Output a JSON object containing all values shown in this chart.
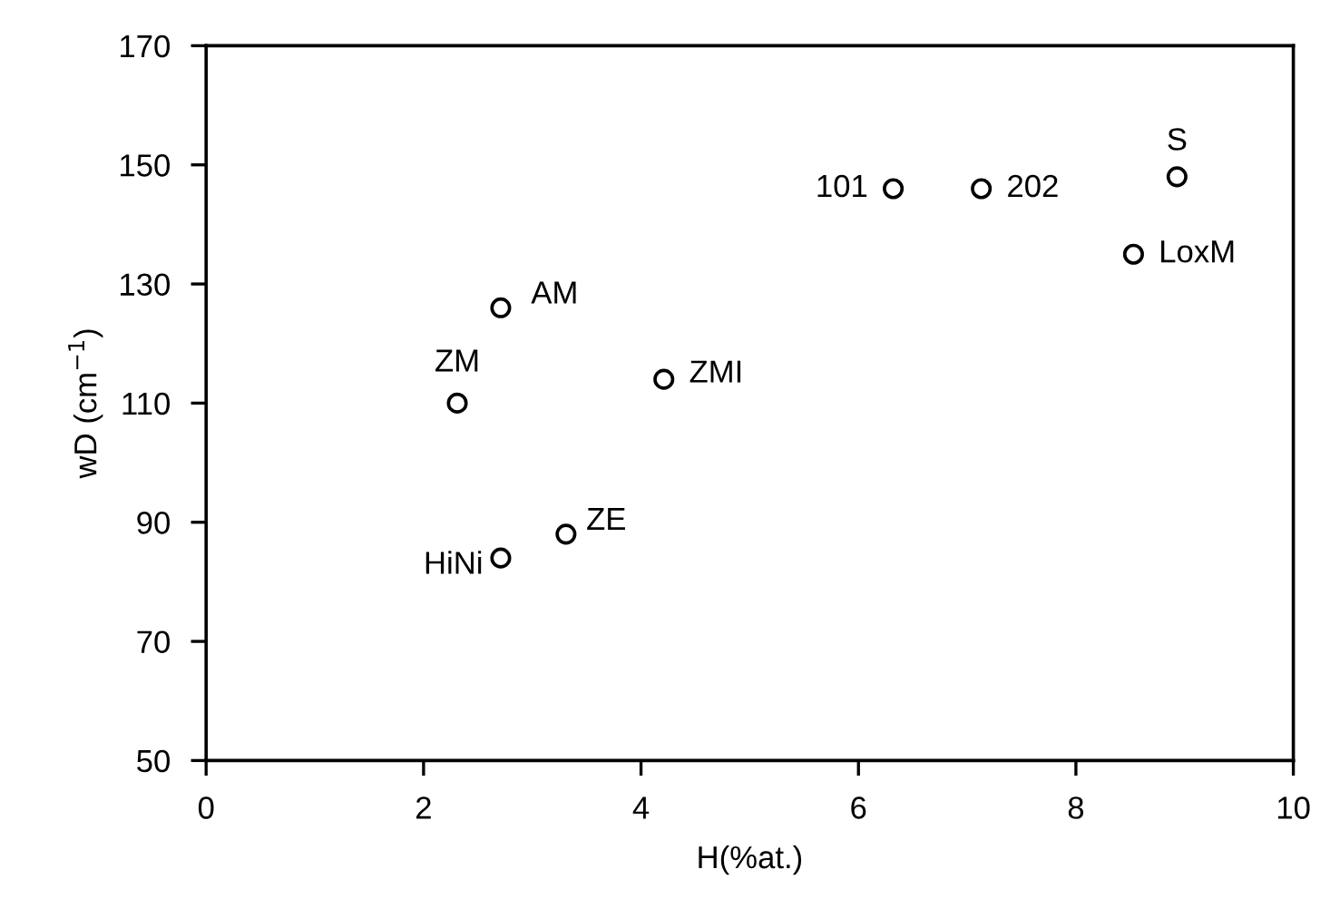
{
  "chart_data": {
    "type": "scatter",
    "xlabel": "H(%at.)",
    "ylabel": "wD (cm$^{−1}$)",
    "x": [
      6.32,
      7.13,
      8.93,
      8.53,
      2.71,
      2.31,
      4.21,
      3.31,
      2.71
    ],
    "values": [
      146,
      146,
      148,
      135,
      126,
      110,
      114,
      88,
      84
    ],
    "color": "#000000",
    "marker": "circle",
    "xlim": [
      0,
      10
    ],
    "xticks": [
      0,
      2,
      4,
      6,
      8,
      10
    ],
    "ylim": [
      50,
      170
    ],
    "yticks": [
      50,
      70,
      90,
      110,
      130,
      150,
      170
    ],
    "grid": false,
    "legend": false,
    "annotations": [
      {
        "text": "101",
        "x": 6.32,
        "y": 146
      },
      {
        "text": "202",
        "x": 7.13,
        "y": 146
      },
      {
        "text": "S",
        "x": 8.93,
        "y": 148
      },
      {
        "text": "LoxM",
        "x": 8.53,
        "y": 135
      },
      {
        "text": "AM",
        "x": 2.71,
        "y": 126
      },
      {
        "text": "ZM",
        "x": 2.31,
        "y": 110
      },
      {
        "text": "ZMI",
        "x": 4.21,
        "y": 114
      },
      {
        "text": "ZE",
        "x": 3.31,
        "y": 88
      },
      {
        "text": "HiNi",
        "x": 2.71,
        "y": 84
      }
    ]
  }
}
